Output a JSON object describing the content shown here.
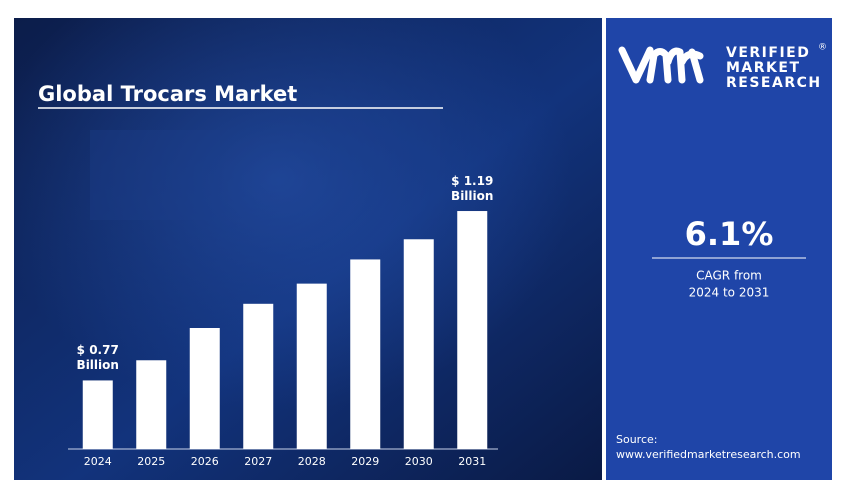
{
  "logo": {
    "line1": "VERIFIED",
    "line2": "MARKET",
    "line3": "RESEARCH",
    "mark": "®"
  },
  "sidebar": {
    "cagr": "6.1%",
    "caption_line1": "CAGR from",
    "caption_line2": "2024 to 2031",
    "source_label": "Source:",
    "source_url": "www.verifiedmarketresearch.com"
  },
  "chart_data": {
    "type": "bar",
    "title": "Global Trocars Market",
    "categories": [
      "2024",
      "2025",
      "2026",
      "2027",
      "2028",
      "2029",
      "2030",
      "2031"
    ],
    "values": [
      0.77,
      0.82,
      0.9,
      0.96,
      1.01,
      1.07,
      1.12,
      1.19
    ],
    "value_labels": [
      "$ 0.77 Billion",
      null,
      null,
      null,
      null,
      null,
      null,
      "$ 1.19 Billion"
    ],
    "color": "#ffffff",
    "ylim": [
      0.6,
      1.2
    ]
  }
}
